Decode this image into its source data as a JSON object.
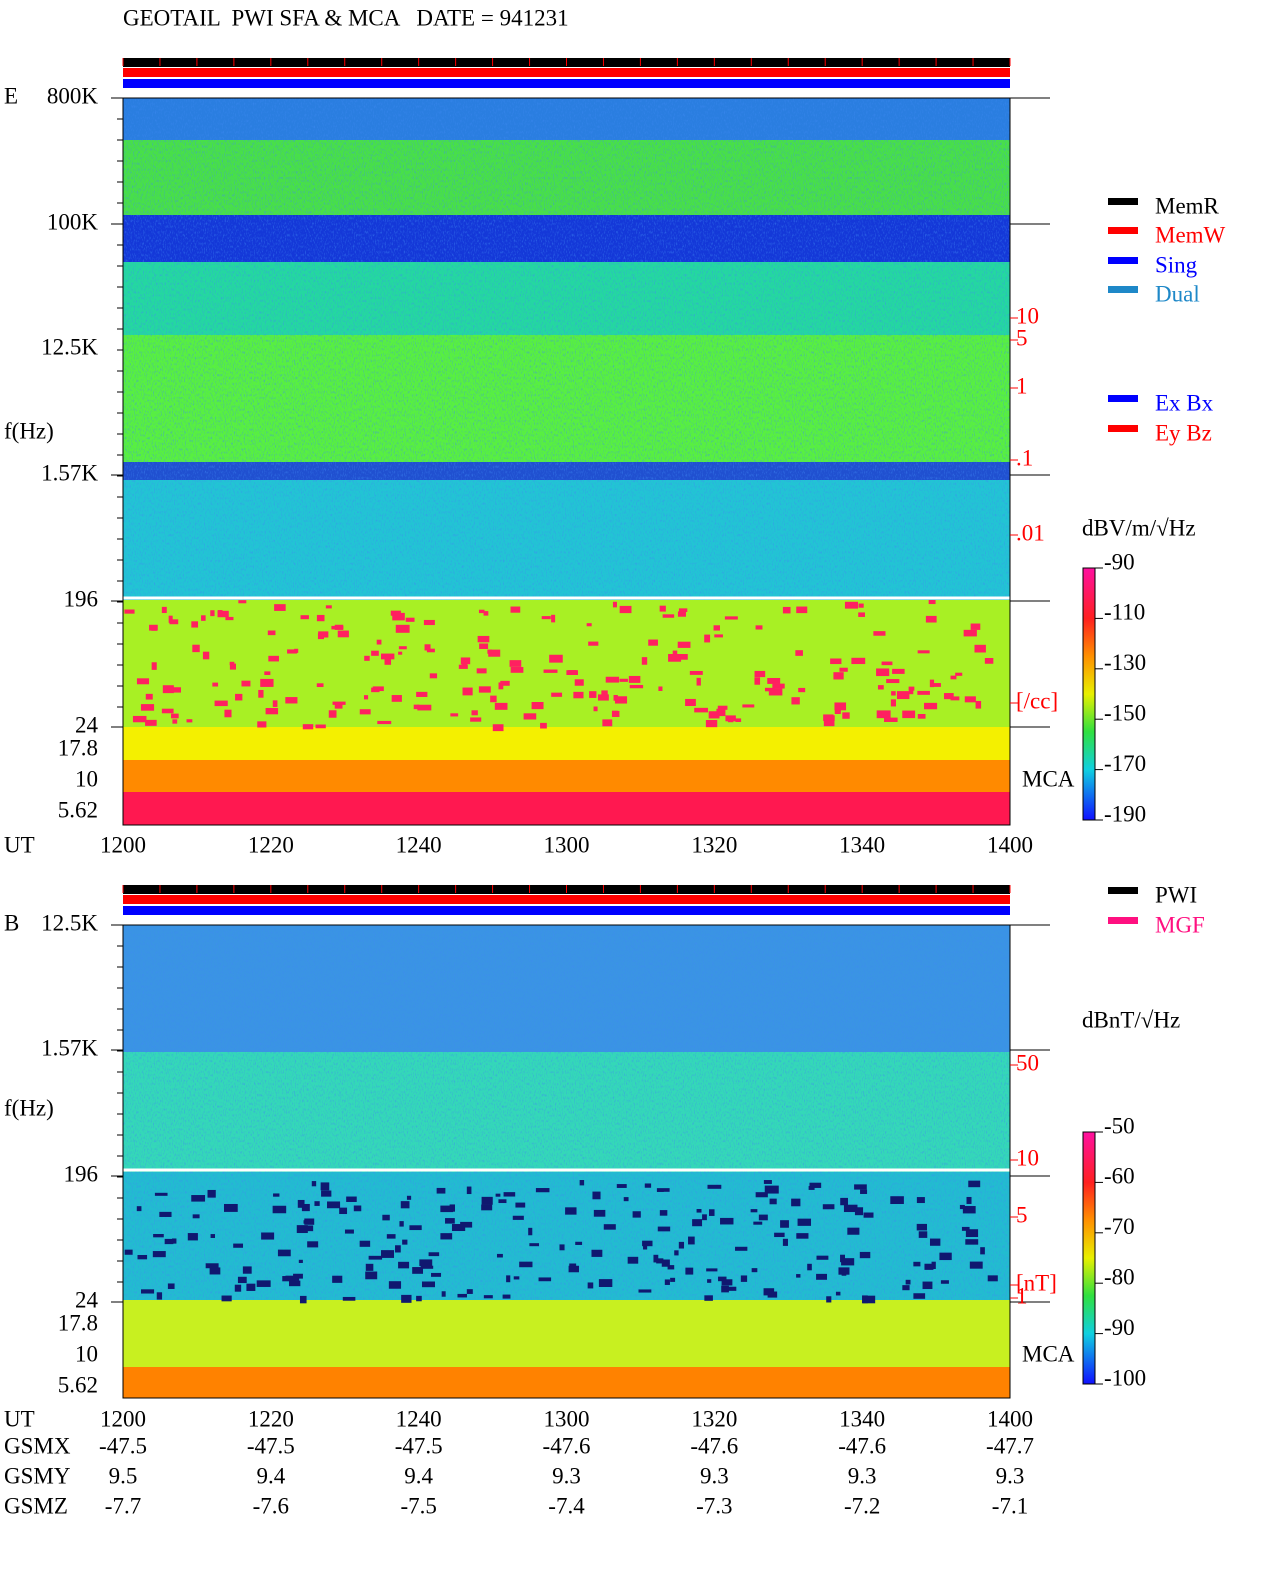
{
  "title": "GEOTAIL  PWI SFA & MCA   DATE = 941231",
  "panels": [
    {
      "label": "E",
      "freq_axis_label": "f(Hz)",
      "time_label": "UT",
      "freq_labels": [
        "800K",
        "100K",
        "12.5K",
        "1.57K",
        "196",
        "24",
        "17.8",
        "10",
        "5.62"
      ],
      "time_labels": [
        "1200",
        "1220",
        "1240",
        "1300",
        "1320",
        "1340",
        "1400"
      ],
      "right_labels": [
        "10",
        "5",
        "1",
        ".1",
        ".01",
        "[/cc]"
      ],
      "mca": "MCA",
      "legend": [
        {
          "name": "MemR",
          "color": "#000000"
        },
        {
          "name": "MemW",
          "color": "#ff0000"
        },
        {
          "name": "Sing",
          "color": "#0000ff"
        },
        {
          "name": "Dual",
          "color": "#1e88c8"
        }
      ],
      "legend2": [
        {
          "name": "Ex Bx",
          "color": "#0000ff"
        },
        {
          "name": "Ey Bz",
          "color": "#ff0000"
        }
      ],
      "colorbar": {
        "unit": "dBV/m/√Hz",
        "ylim": [
          -190,
          -90
        ],
        "yticks": [
          -90,
          -110,
          -130,
          -150,
          -170,
          -190
        ]
      }
    },
    {
      "label": "B",
      "freq_axis_label": "f(Hz)",
      "time_label": "UT",
      "freq_labels": [
        "12.5K",
        "1.57K",
        "196",
        "24",
        "17.8",
        "10",
        "5.62"
      ],
      "time_labels": [
        "1200",
        "1220",
        "1240",
        "1300",
        "1320",
        "1340",
        "1400"
      ],
      "right_labels": [
        "50",
        "10",
        "5",
        "1",
        "[nT]"
      ],
      "mca": "MCA",
      "legend": [
        {
          "name": "PWI",
          "color": "#000000"
        },
        {
          "name": "MGF",
          "color": "#ff1080"
        }
      ],
      "colorbar": {
        "unit": "dBnT/√Hz",
        "ylim": [
          -100,
          -50
        ],
        "yticks": [
          -50,
          -60,
          -70,
          -80,
          -90,
          -100
        ]
      }
    }
  ],
  "orbit": {
    "rows": [
      {
        "name": "GSMX",
        "values": [
          -47.5,
          -47.5,
          -47.5,
          -47.6,
          -47.6,
          -47.6,
          -47.7
        ]
      },
      {
        "name": "GSMY",
        "values": [
          9.5,
          9.4,
          9.4,
          9.3,
          9.3,
          9.3,
          9.3
        ]
      },
      {
        "name": "GSMZ",
        "values": [
          -7.7,
          -7.6,
          -7.5,
          -7.4,
          -7.3,
          -7.2,
          -7.1
        ]
      }
    ]
  }
}
